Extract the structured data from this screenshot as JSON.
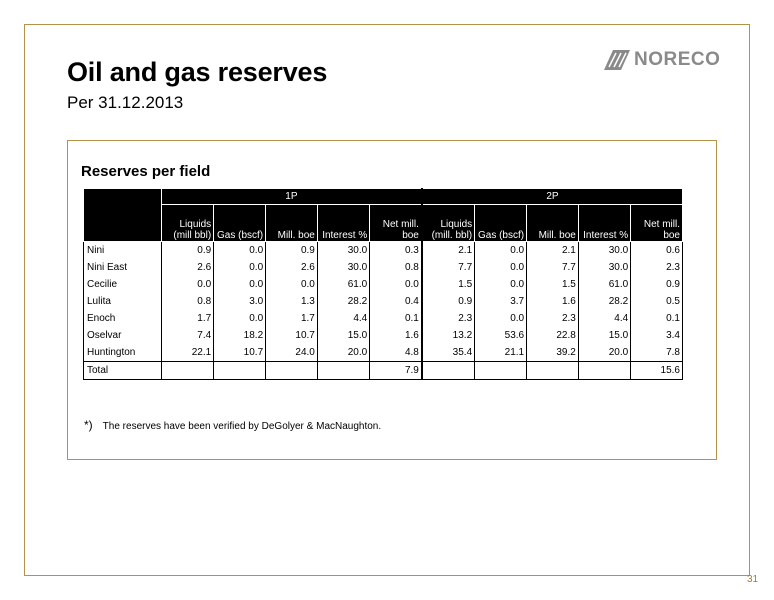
{
  "slide": {
    "title": "Oil and gas reserves",
    "subtitle": "Per 31.12.2013",
    "logo_text": "NORECO",
    "page_number": "31"
  },
  "panel": {
    "title": "Reserves per field",
    "groups": [
      "1P",
      "2P"
    ],
    "columns_1p": [
      "Liquids (mill bbl)",
      "Gas (bscf)",
      "Mill. boe",
      "Interest %",
      "Net mill. boe"
    ],
    "columns_2p": [
      "Liquids (mill. bbl)",
      "Gas (bscf)",
      "Mill. boe",
      "Interest %",
      "Net mill. boe"
    ],
    "rows": [
      {
        "field": "Nini",
        "p1": [
          "0.9",
          "0.0",
          "0.9",
          "30.0",
          "0.3"
        ],
        "p2": [
          "2.1",
          "0.0",
          "2.1",
          "30.0",
          "0.6"
        ]
      },
      {
        "field": "Nini East",
        "p1": [
          "2.6",
          "0.0",
          "2.6",
          "30.0",
          "0.8"
        ],
        "p2": [
          "7.7",
          "0.0",
          "7.7",
          "30.0",
          "2.3"
        ]
      },
      {
        "field": "Cecilie",
        "p1": [
          "0.0",
          "0.0",
          "0.0",
          "61.0",
          "0.0"
        ],
        "p2": [
          "1.5",
          "0.0",
          "1.5",
          "61.0",
          "0.9"
        ]
      },
      {
        "field": "Lulita",
        "p1": [
          "0.8",
          "3.0",
          "1.3",
          "28.2",
          "0.4"
        ],
        "p2": [
          "0.9",
          "3.7",
          "1.6",
          "28.2",
          "0.5"
        ]
      },
      {
        "field": "Enoch",
        "p1": [
          "1.7",
          "0.0",
          "1.7",
          "4.4",
          "0.1"
        ],
        "p2": [
          "2.3",
          "0.0",
          "2.3",
          "4.4",
          "0.1"
        ]
      },
      {
        "field": "Oselvar",
        "p1": [
          "7.4",
          "18.2",
          "10.7",
          "15.0",
          "1.6"
        ],
        "p2": [
          "13.2",
          "53.6",
          "22.8",
          "15.0",
          "3.4"
        ]
      },
      {
        "field": "Huntington",
        "p1": [
          "22.1",
          "10.7",
          "24.0",
          "20.0",
          "4.8"
        ],
        "p2": [
          "35.4",
          "21.1",
          "39.2",
          "20.0",
          "7.8"
        ]
      }
    ],
    "total": {
      "label": "Total",
      "p1_net": "7.9",
      "p2_net": "15.6"
    },
    "footnote_marker": "*)",
    "footnote": "The reserves have been verified by DeGolyer & MacNaughton."
  },
  "colors": {
    "border": "#b5924a",
    "logo": "#8a8a8a",
    "page_number": "#a07d2e",
    "header": "#000000"
  },
  "icons": {
    "logo_mark": "noreco-logo-mark"
  }
}
